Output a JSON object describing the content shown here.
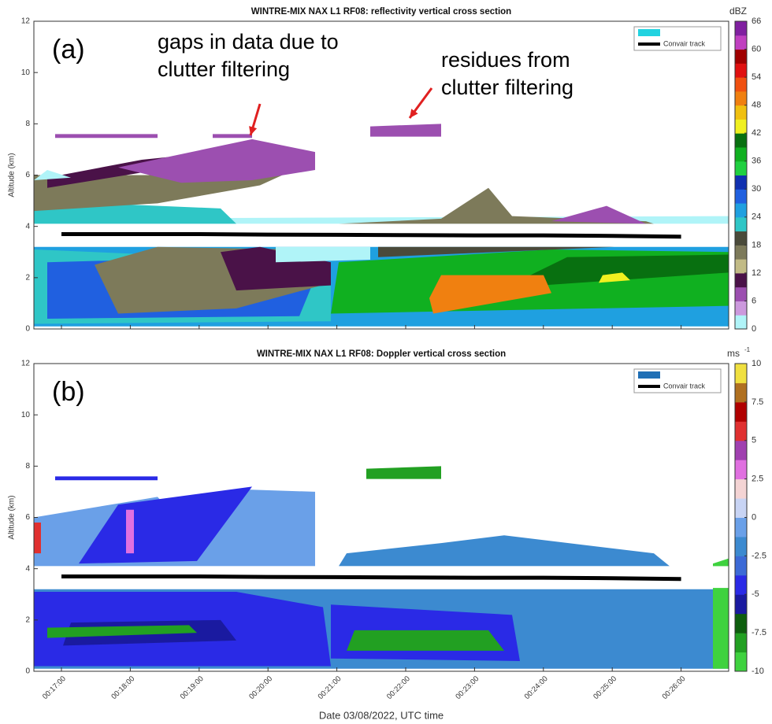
{
  "chart_data": [
    {
      "type": "cross-section",
      "title": "WINTRE-MIX NAX L1 RF08: reflectivity vertical cross section",
      "panel_label": "(a)",
      "ylabel": "Altitude (km)",
      "ylim": [
        0,
        12
      ],
      "yticks": [
        0,
        2,
        4,
        6,
        8,
        10,
        12
      ],
      "colorbar": {
        "unit": "dBZ",
        "lim": [
          0,
          66
        ],
        "ticks": [
          0,
          6,
          12,
          18,
          24,
          30,
          36,
          42,
          48,
          54,
          60,
          66
        ],
        "colors": [
          "#b0f4f8",
          "#cc99dd",
          "#9c4fb0",
          "#4a1248",
          "#c2bb86",
          "#7d7a5a",
          "#4a4a3a",
          "#2fc6c6",
          "#1fa0e0",
          "#2060e0",
          "#1030b0",
          "#20d040",
          "#10b020",
          "#087010",
          "#f0f020",
          "#f0c010",
          "#f08010",
          "#f05010",
          "#e01010",
          "#a00000",
          "#c040c0",
          "#8020a0"
        ]
      },
      "legend_swatch": "#22d3e0",
      "series": [
        {
          "name": "Convair track",
          "color": "#000000",
          "values": [
            3.7,
            3.7,
            3.7,
            3.68,
            3.67,
            3.66,
            3.65,
            3.65,
            3.63,
            3.6
          ]
        }
      ],
      "annotations": [
        {
          "lines": [
            "gaps in data due to",
            "clutter filtering"
          ]
        },
        {
          "lines": [
            "residues from",
            "clutter filtering"
          ]
        }
      ]
    },
    {
      "type": "cross-section",
      "title": "WINTRE-MIX NAX L1 RF08: Doppler vertical cross section",
      "panel_label": "(b)",
      "ylabel": "Altitude (km)",
      "ylim": [
        0,
        12
      ],
      "yticks": [
        0,
        2,
        4,
        6,
        8,
        10,
        12
      ],
      "colorbar": {
        "unit": "ms",
        "unit_exponent": "-1",
        "lim": [
          -10,
          10
        ],
        "ticks": [
          -10,
          -7.5,
          -5,
          -2.5,
          0,
          2.5,
          5,
          7.5,
          10
        ],
        "colors": [
          "#3fd23f",
          "#22a022",
          "#0e5e0e",
          "#1a1aa0",
          "#2a2ae6",
          "#3c6ad6",
          "#3c8ad0",
          "#6aa0e8",
          "#c8d4f4",
          "#f4d4d4",
          "#e070e0",
          "#a040b0",
          "#e03030",
          "#b00000",
          "#b07020",
          "#f0e040"
        ]
      },
      "legend_swatch": "#1f6fb5",
      "series": [
        {
          "name": "Convair track",
          "color": "#000000",
          "values": [
            3.7,
            3.7,
            3.7,
            3.68,
            3.67,
            3.66,
            3.65,
            3.65,
            3.63,
            3.6
          ]
        }
      ],
      "xticks": [
        "00:17:00",
        "00:18:00",
        "00:19:00",
        "00:20:00",
        "00:21:00",
        "00:22:00",
        "00:23:00",
        "00:24:00",
        "00:25:00",
        "00:26:00"
      ],
      "xlabel": "Date 03/08/2022, UTC time"
    }
  ]
}
